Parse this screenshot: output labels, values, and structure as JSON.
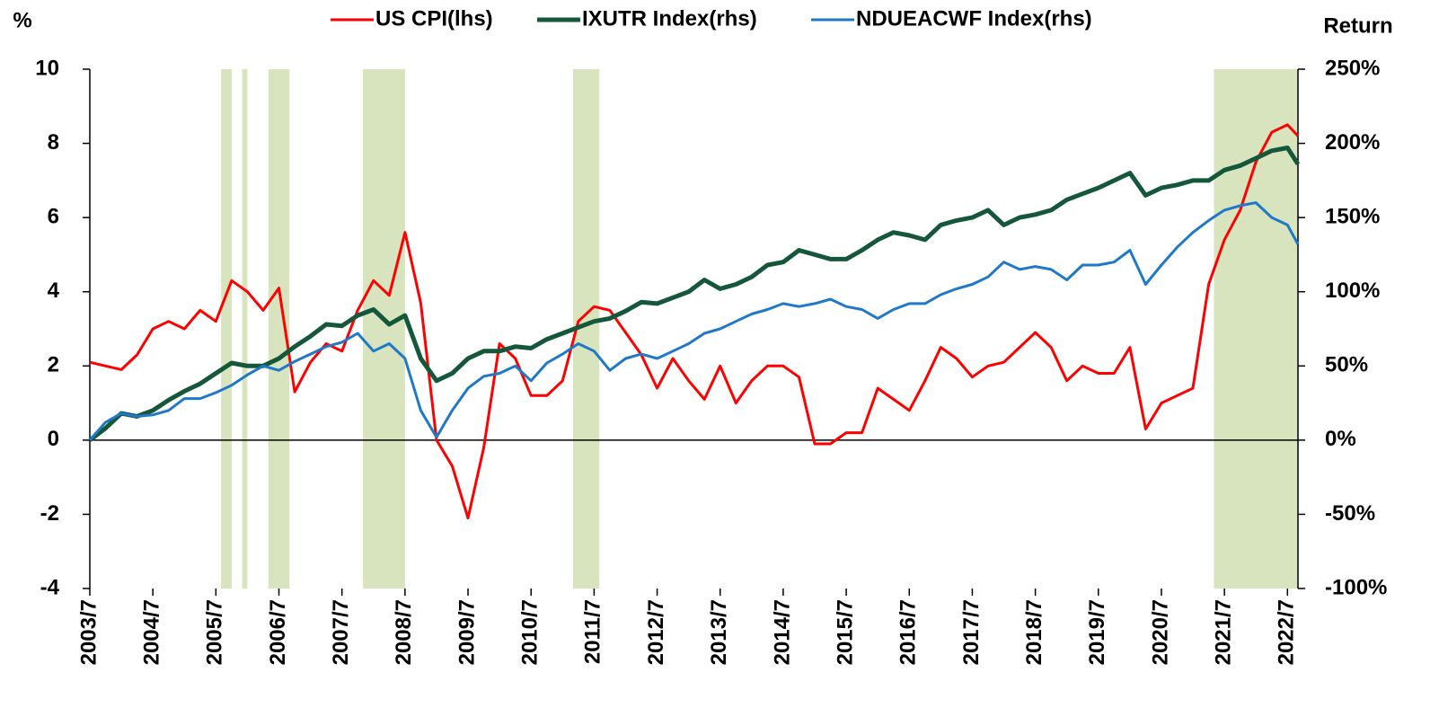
{
  "chart_data": {
    "type": "line",
    "ylabel": "%",
    "y2label": "Return",
    "x": [
      "2003/7",
      "2003/10",
      "2004/1",
      "2004/4",
      "2004/7",
      "2004/10",
      "2005/1",
      "2005/4",
      "2005/7",
      "2005/10",
      "2006/1",
      "2006/4",
      "2006/7",
      "2006/10",
      "2007/1",
      "2007/4",
      "2007/7",
      "2007/10",
      "2008/1",
      "2008/4",
      "2008/7",
      "2008/10",
      "2009/1",
      "2009/4",
      "2009/7",
      "2009/10",
      "2010/1",
      "2010/4",
      "2010/7",
      "2010/10",
      "2011/1",
      "2011/4",
      "2011/7",
      "2011/10",
      "2012/1",
      "2012/4",
      "2012/7",
      "2012/10",
      "2013/1",
      "2013/4",
      "2013/7",
      "2013/10",
      "2014/1",
      "2014/4",
      "2014/7",
      "2014/10",
      "2015/1",
      "2015/4",
      "2015/7",
      "2015/10",
      "2016/1",
      "2016/4",
      "2016/7",
      "2016/10",
      "2017/1",
      "2017/4",
      "2017/7",
      "2017/10",
      "2018/1",
      "2018/4",
      "2018/7",
      "2018/10",
      "2019/1",
      "2019/4",
      "2019/7",
      "2019/10",
      "2020/1",
      "2020/4",
      "2020/7",
      "2020/10",
      "2021/1",
      "2021/4",
      "2021/7",
      "2021/10",
      "2022/1",
      "2022/4",
      "2022/7",
      "2022/9"
    ],
    "xlim": [
      "2003/7",
      "2022/9"
    ],
    "xticks": [
      "2003/7",
      "2004/7",
      "2005/7",
      "2006/7",
      "2007/7",
      "2008/7",
      "2009/7",
      "2010/7",
      "2011/7",
      "2012/7",
      "2013/7",
      "2014/7",
      "2015/7",
      "2016/7",
      "2017/7",
      "2018/7",
      "2019/7",
      "2020/7",
      "2021/7",
      "2022/7"
    ],
    "ylim": [
      -4,
      10
    ],
    "yticks": [
      -4,
      -2,
      0,
      2,
      4,
      6,
      8,
      10
    ],
    "y2lim": [
      -100,
      250
    ],
    "y2ticks": [
      {
        "value": -100,
        "label": "-100%"
      },
      {
        "value": -50,
        "label": "-50%"
      },
      {
        "value": 0,
        "label": "0%"
      },
      {
        "value": 50,
        "label": "50%"
      },
      {
        "value": 100,
        "label": "100%"
      },
      {
        "value": 150,
        "label": "150%"
      },
      {
        "value": 200,
        "label": "200%"
      },
      {
        "value": 250,
        "label": "250%"
      }
    ],
    "shaded": [
      [
        "2005/8",
        "2005/10"
      ],
      [
        "2005/12",
        "2006/1"
      ],
      [
        "2006/5",
        "2006/9"
      ],
      [
        "2007/11",
        "2008/7"
      ],
      [
        "2011/3",
        "2011/8"
      ],
      [
        "2021/5",
        "2022/9"
      ]
    ],
    "shade_color": "#d7e4bd",
    "legend": "top",
    "series": [
      {
        "name": "US CPI(lhs)",
        "color": "#ff0000",
        "width": 3,
        "values": [
          2.1,
          2.0,
          1.9,
          2.3,
          3.0,
          3.2,
          3.0,
          3.5,
          3.2,
          4.3,
          4.0,
          3.5,
          4.1,
          1.3,
          2.1,
          2.6,
          2.4,
          3.5,
          4.3,
          3.9,
          5.6,
          3.7,
          0.0,
          -0.7,
          -2.1,
          -0.2,
          2.6,
          2.2,
          1.2,
          1.2,
          1.6,
          3.2,
          3.6,
          3.5,
          2.9,
          2.3,
          1.4,
          2.2,
          1.6,
          1.1,
          2.0,
          1.0,
          1.6,
          2.0,
          2.0,
          1.7,
          -0.1,
          -0.1,
          0.2,
          0.2,
          1.4,
          1.1,
          0.8,
          1.6,
          2.5,
          2.2,
          1.7,
          2.0,
          2.1,
          2.5,
          2.9,
          2.5,
          1.6,
          2.0,
          1.8,
          1.8,
          2.5,
          0.3,
          1.0,
          1.2,
          1.4,
          4.2,
          5.4,
          6.2,
          7.5,
          8.3,
          8.5,
          8.2
        ]
      },
      {
        "name": "IXUTR Index(rhs)",
        "color": "#14573a",
        "width": 5,
        "axis": "y2",
        "values": [
          0,
          8,
          18,
          16,
          20,
          27,
          33,
          38,
          45,
          52,
          50,
          50,
          55,
          63,
          70,
          78,
          77,
          84,
          88,
          78,
          84,
          55,
          40,
          45,
          55,
          60,
          60,
          63,
          62,
          68,
          72,
          76,
          80,
          82,
          87,
          93,
          92,
          96,
          100,
          108,
          102,
          105,
          110,
          118,
          120,
          128,
          125,
          122,
          122,
          128,
          135,
          140,
          138,
          135,
          145,
          148,
          150,
          155,
          145,
          150,
          152,
          155,
          162,
          166,
          170,
          175,
          180,
          165,
          170,
          172,
          175,
          175,
          182,
          185,
          190,
          195,
          197,
          186
        ]
      },
      {
        "name": "NDUEACWF Index(rhs)",
        "color": "#1f78c8",
        "width": 3,
        "axis": "y2",
        "values": [
          0,
          12,
          18,
          16,
          17,
          20,
          28,
          28,
          32,
          37,
          44,
          50,
          47,
          53,
          58,
          63,
          66,
          72,
          60,
          65,
          55,
          20,
          2,
          20,
          35,
          43,
          45,
          50,
          40,
          52,
          58,
          65,
          60,
          47,
          55,
          58,
          55,
          60,
          65,
          72,
          75,
          80,
          85,
          88,
          92,
          90,
          92,
          95,
          90,
          88,
          82,
          88,
          92,
          92,
          98,
          102,
          105,
          110,
          120,
          115,
          117,
          115,
          108,
          118,
          118,
          120,
          128,
          105,
          118,
          130,
          140,
          148,
          155,
          158,
          160,
          150,
          145,
          132
        ]
      }
    ]
  }
}
